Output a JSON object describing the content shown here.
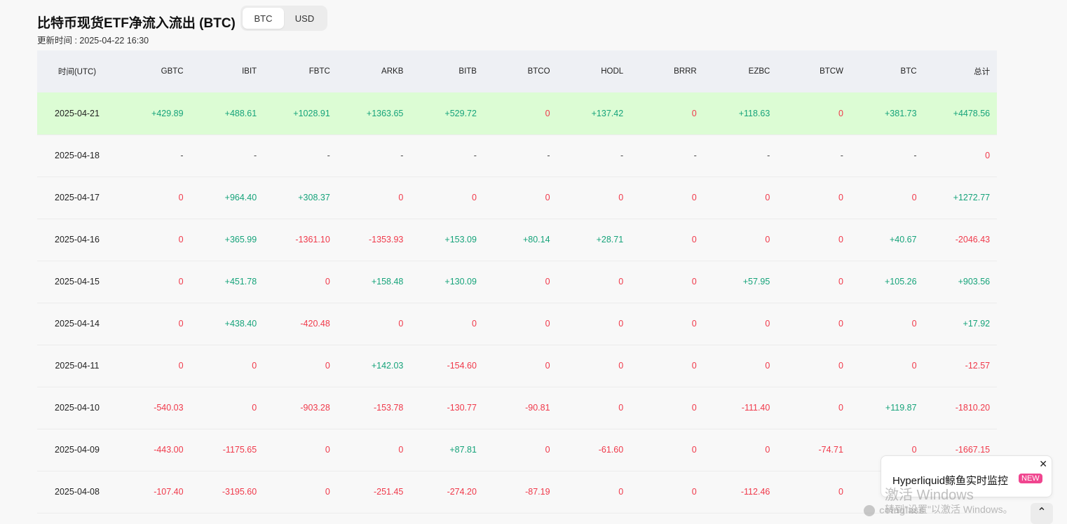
{
  "header": {
    "title": "比特币现货ETF净流入流出 (BTC)",
    "toggle": [
      {
        "label": "BTC",
        "active": true
      },
      {
        "label": "USD",
        "active": false
      }
    ],
    "updated": "更新时间 : 2025-04-22 16:30"
  },
  "table": {
    "columns": [
      "时间(UTC)",
      "GBTC",
      "IBIT",
      "FBTC",
      "ARKB",
      "BITB",
      "BTCO",
      "HODL",
      "BRRR",
      "EZBC",
      "BTCW",
      "BTC",
      "总计"
    ],
    "rows": [
      {
        "date": "2025-04-21",
        "highlight": true,
        "values": [
          "+429.89",
          "+488.61",
          "+1028.91",
          "+1363.65",
          "+529.72",
          "0",
          "+137.42",
          "0",
          "+118.63",
          "0",
          "+381.73",
          "+4478.56"
        ]
      },
      {
        "date": "2025-04-18",
        "highlight": false,
        "values": [
          "-",
          "-",
          "-",
          "-",
          "-",
          "-",
          "-",
          "-",
          "-",
          "-",
          "-",
          "0"
        ]
      },
      {
        "date": "2025-04-17",
        "highlight": false,
        "values": [
          "0",
          "+964.40",
          "+308.37",
          "0",
          "0",
          "0",
          "0",
          "0",
          "0",
          "0",
          "0",
          "+1272.77"
        ]
      },
      {
        "date": "2025-04-16",
        "highlight": false,
        "values": [
          "0",
          "+365.99",
          "-1361.10",
          "-1353.93",
          "+153.09",
          "+80.14",
          "+28.71",
          "0",
          "0",
          "0",
          "+40.67",
          "-2046.43"
        ]
      },
      {
        "date": "2025-04-15",
        "highlight": false,
        "values": [
          "0",
          "+451.78",
          "0",
          "+158.48",
          "+130.09",
          "0",
          "0",
          "0",
          "+57.95",
          "0",
          "+105.26",
          "+903.56"
        ]
      },
      {
        "date": "2025-04-14",
        "highlight": false,
        "values": [
          "0",
          "+438.40",
          "-420.48",
          "0",
          "0",
          "0",
          "0",
          "0",
          "0",
          "0",
          "0",
          "+17.92"
        ]
      },
      {
        "date": "2025-04-11",
        "highlight": false,
        "values": [
          "0",
          "0",
          "0",
          "+142.03",
          "-154.60",
          "0",
          "0",
          "0",
          "0",
          "0",
          "0",
          "-12.57"
        ]
      },
      {
        "date": "2025-04-10",
        "highlight": false,
        "values": [
          "-540.03",
          "0",
          "-903.28",
          "-153.78",
          "-130.77",
          "-90.81",
          "0",
          "0",
          "-111.40",
          "0",
          "+119.87",
          "-1810.20"
        ]
      },
      {
        "date": "2025-04-09",
        "highlight": false,
        "values": [
          "-443.00",
          "-1175.65",
          "0",
          "0",
          "+87.81",
          "0",
          "-61.60",
          "0",
          "0",
          "-74.71",
          "0",
          "-1667.15"
        ]
      },
      {
        "date": "2025-04-08",
        "highlight": false,
        "values": [
          "-107.40",
          "-3195.60",
          "0",
          "-251.45",
          "-274.20",
          "-87.19",
          "0",
          "0",
          "-112.46",
          "0",
          "",
          ""
        ]
      }
    ]
  },
  "popup": {
    "text": "Hyperliquid鲸鱼实时监控",
    "badge": "NEW",
    "close": "✕"
  },
  "watermark": {
    "line1": "激活 Windows",
    "line2": "转到\"设置\"以激活 Windows。",
    "brand": "coinglass"
  },
  "scroll_top": "⌃",
  "colors": {
    "positive": "#16a37a",
    "negative": "#f0394a",
    "highlight_row": "#dcfcd4",
    "header_bg": "#eef0f4"
  }
}
